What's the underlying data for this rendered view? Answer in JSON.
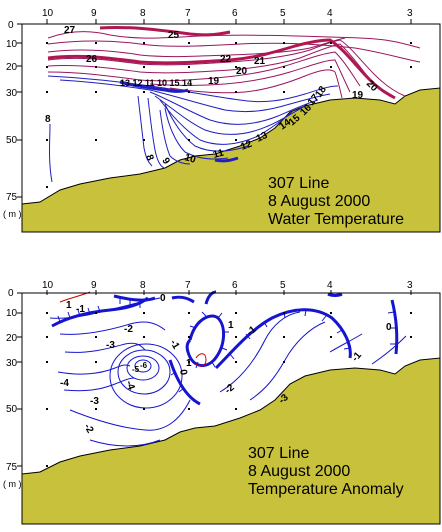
{
  "colors": {
    "land": "#c8c13c",
    "warm_contour": "#9a1660",
    "cold_contour": "#2020c0",
    "anomaly_contour": "#1515d0",
    "zero_contour": "#cc0000"
  },
  "panels": [
    {
      "station_labels": [
        "10",
        "9",
        "8",
        "7",
        "6",
        "5",
        "4",
        "3"
      ],
      "depth_labels": [
        "0",
        "10",
        "20",
        "30",
        "50",
        "75"
      ],
      "unit_label": "( m )",
      "title_lines": [
        "307 Line",
        "8 August 2000",
        "Water Temperature"
      ],
      "contour_labels": [
        "27",
        "26",
        "25",
        "22",
        "21",
        "20",
        "20",
        "19",
        "19",
        "18",
        "17",
        "16",
        "15",
        "14",
        "13",
        "12",
        "11",
        "10",
        "9",
        "8",
        "8",
        "13 12 11 10 15 14"
      ]
    },
    {
      "station_labels": [
        "10",
        "9",
        "8",
        "7",
        "6",
        "5",
        "4",
        "3"
      ],
      "depth_labels": [
        "0",
        "10",
        "20",
        "30",
        "50",
        "75"
      ],
      "unit_label": "( m )",
      "title_lines": [
        "307 Line",
        "8 August 2000",
        "Temperature Anomaly"
      ],
      "contour_labels": [
        "1",
        "0",
        "0",
        "0",
        "-1",
        "-1",
        "-1",
        "-1",
        "-2",
        "-2",
        "-2",
        "-3",
        "-3",
        "-3",
        "-4",
        "-4",
        "-5",
        "-6",
        "1",
        "1"
      ]
    }
  ]
}
